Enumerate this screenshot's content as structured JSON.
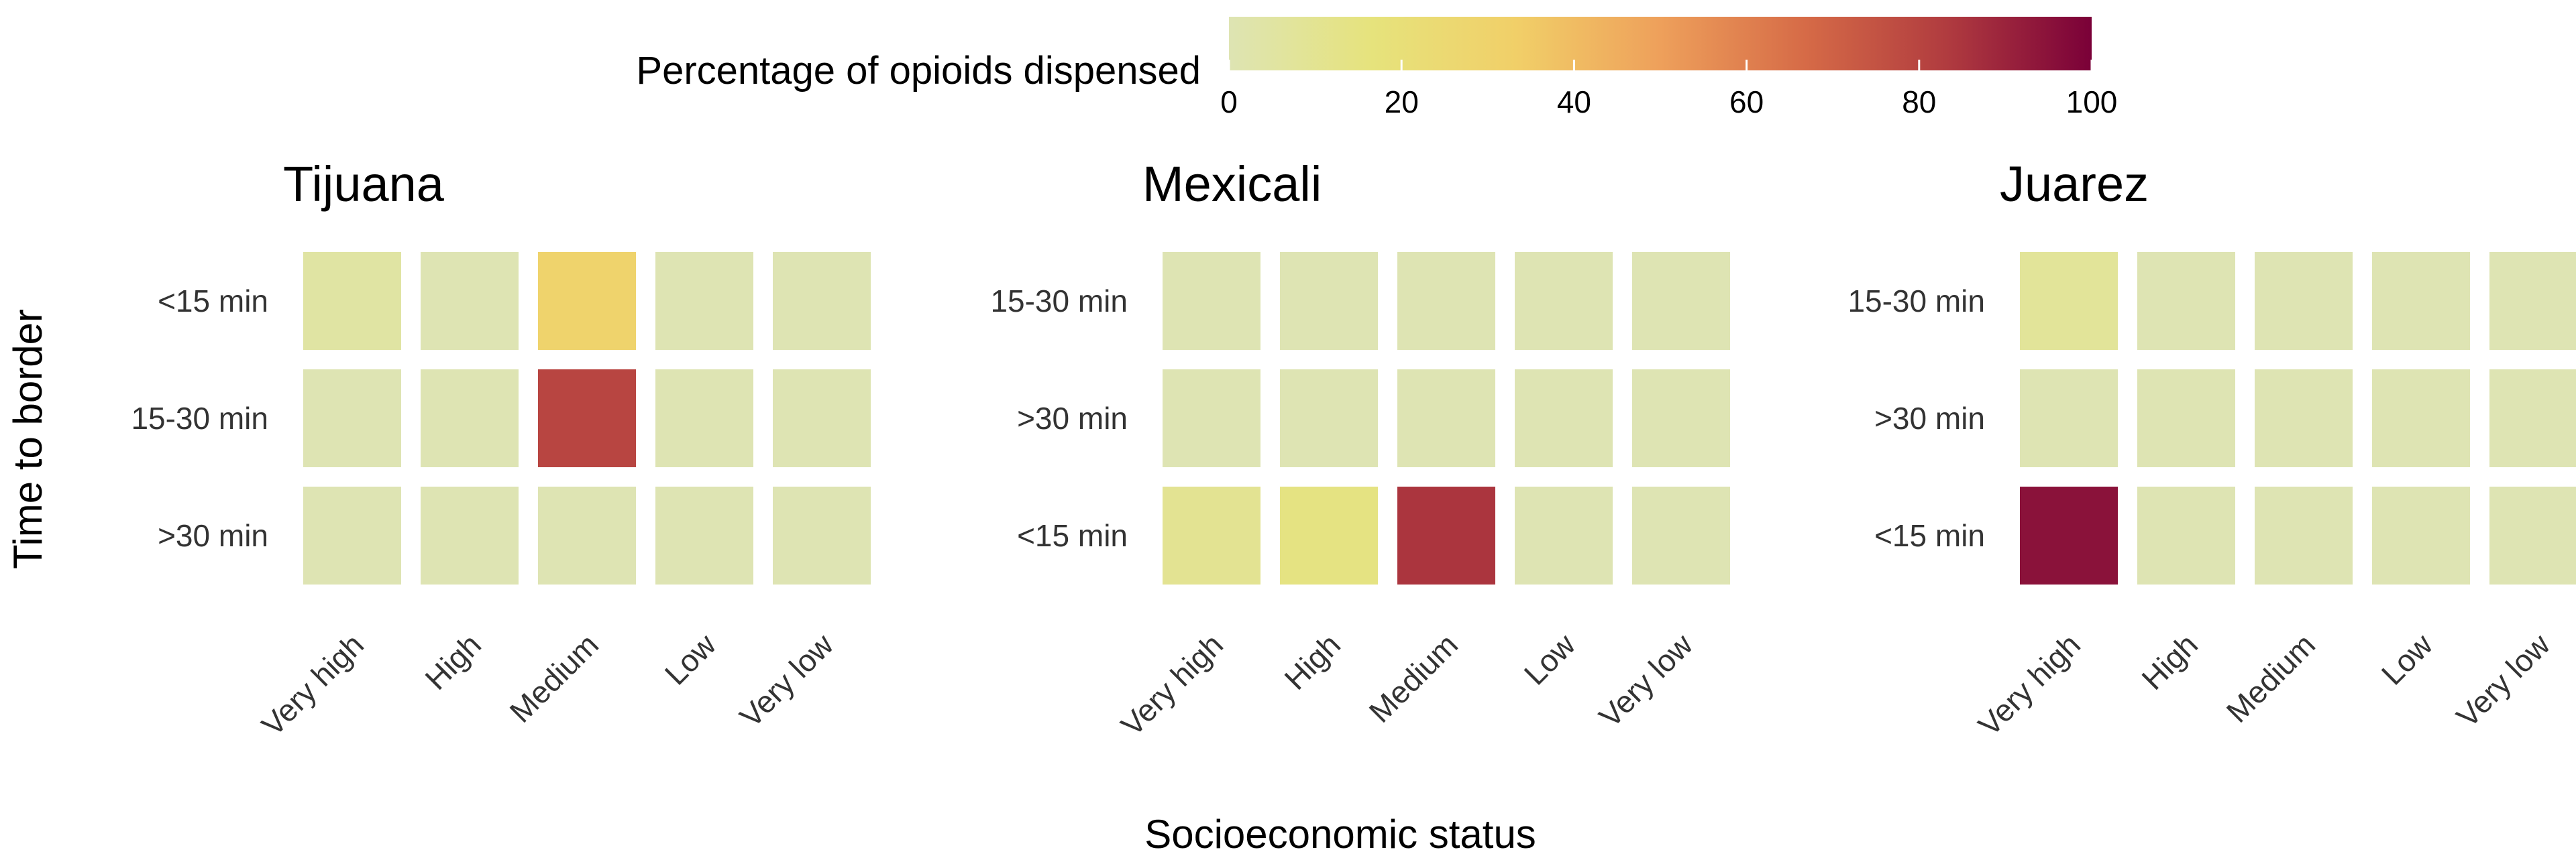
{
  "chart_data": {
    "type": "heatmap",
    "xlabel": "Socioeconomic status",
    "ylabel": "Time to border",
    "legend": {
      "title": "Percentage of opioids dispensed",
      "position": "top",
      "min": 0,
      "max": 100,
      "ticks": [
        "0",
        "20",
        "40",
        "60",
        "80",
        "100"
      ],
      "colors": [
        "#dee4b3",
        "#e6e37c",
        "#f1cf68",
        "#eea05b",
        "#d66b47",
        "#b03b3f",
        "#7a0038"
      ]
    },
    "categories": [
      "Very high",
      "High",
      "Medium",
      "Low",
      "Very low"
    ],
    "panels": [
      {
        "title": "Tijuana",
        "rows": [
          "<15 min",
          "15-30 min",
          ">30 min"
        ],
        "values": [
          [
            5,
            0,
            30,
            0,
            0
          ],
          [
            0,
            0,
            80,
            0,
            0
          ],
          [
            0,
            0,
            0,
            0,
            0
          ]
        ]
      },
      {
        "title": "Mexicali",
        "rows": [
          "15-30 min",
          ">30 min",
          "<15 min"
        ],
        "values": [
          [
            0,
            0,
            0,
            0,
            0
          ],
          [
            0,
            0,
            0,
            0,
            0
          ],
          [
            10,
            15,
            85,
            0,
            0
          ]
        ]
      },
      {
        "title": "Juarez",
        "rows": [
          "15-30 min",
          ">30 min",
          "<15 min"
        ],
        "values": [
          [
            8,
            0,
            0,
            0,
            0
          ],
          [
            0,
            0,
            0,
            0,
            0
          ],
          [
            95,
            0,
            0,
            0,
            0
          ]
        ]
      }
    ]
  }
}
